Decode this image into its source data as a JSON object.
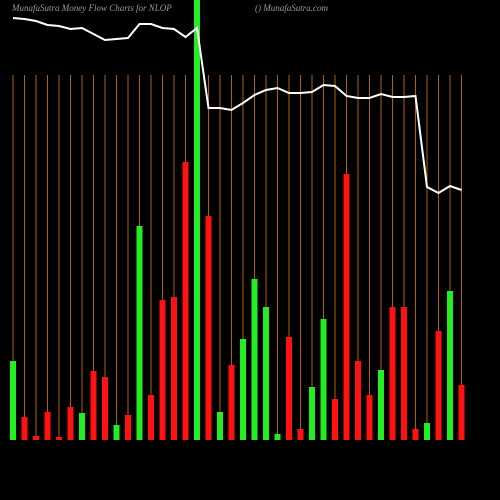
{
  "chart_data": {
    "type": "bar",
    "title": "MunafaSutra  Money Flow  Charts for NLOP",
    "subtitle": "() MunafaSutra.com",
    "categories": [
      null,
      null,
      null,
      null,
      null,
      null,
      null,
      null,
      null,
      null,
      null,
      null,
      null,
      null,
      null,
      null,
      null,
      null,
      null,
      null,
      null,
      null,
      null,
      null,
      null,
      null,
      null,
      null,
      null,
      null,
      null,
      null,
      null,
      null,
      null,
      null,
      null,
      null,
      null,
      null
    ],
    "ylim": [
      0,
      440
    ],
    "grid": true,
    "grid_color": "#b35f00",
    "series": [
      {
        "type": "bar",
        "values": [
          79,
          23,
          4,
          28,
          3,
          33,
          27,
          69,
          63,
          15,
          25,
          214,
          45,
          140,
          143,
          278,
          440,
          224,
          28,
          75,
          101,
          161,
          133,
          6,
          103,
          11,
          53,
          121,
          41,
          266,
          79,
          45,
          70,
          133,
          133,
          11,
          17,
          109,
          149,
          55
        ],
        "colors": [
          "#22ee22",
          "#ff1111",
          "#ff1111",
          "#ff1111",
          "#ff1111",
          "#ff1111",
          "#22ee22",
          "#ff1111",
          "#ff1111",
          "#22ee22",
          "#ff1111",
          "#22ee22",
          "#ff1111",
          "#ff1111",
          "#ff1111",
          "#ff1111",
          "#22ee22",
          "#ff1111",
          "#22ee22",
          "#ff1111",
          "#22ee22",
          "#22ee22",
          "#22ee22",
          "#22ee22",
          "#ff1111",
          "#ff1111",
          "#22ee22",
          "#22ee22",
          "#ff1111",
          "#ff1111",
          "#ff1111",
          "#ff1111",
          "#22ee22",
          "#ff1111",
          "#ff1111",
          "#ff1111",
          "#22ee22",
          "#ff1111",
          "#22ee22",
          "#ff1111"
        ]
      },
      {
        "type": "line",
        "color": "#ffffff",
        "values": [
          422,
          421,
          419,
          415,
          414,
          411,
          412,
          406,
          400,
          401,
          402,
          416,
          416,
          412,
          411,
          403,
          412,
          332,
          332,
          330,
          337,
          345,
          350,
          352,
          347,
          347,
          348,
          355,
          354,
          344,
          342,
          342,
          346,
          343,
          343,
          344,
          253,
          247,
          254,
          250
        ]
      }
    ]
  }
}
